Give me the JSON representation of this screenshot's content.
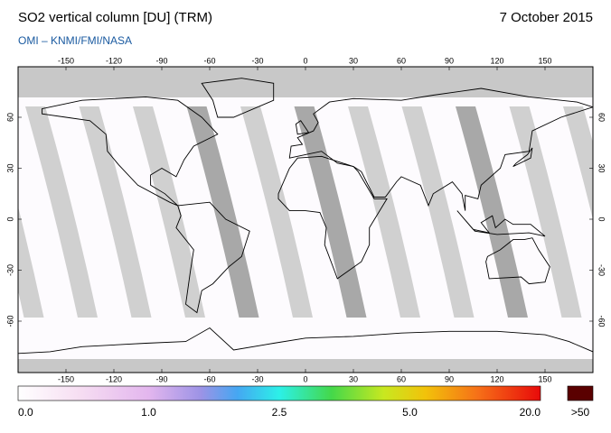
{
  "header": {
    "title": "SO2 vertical column [DU] (TRM)",
    "date": "7 October 2015",
    "subtitle": "OMI  –  KNMI/FMI/NASA"
  },
  "map": {
    "lon_ticks": [
      -150,
      -120,
      -90,
      -60,
      -30,
      0,
      30,
      60,
      90,
      120,
      150
    ],
    "lat_ticks": [
      60,
      30,
      0,
      -30,
      -60
    ]
  },
  "colorbar": {
    "labels": [
      "0.0",
      "1.0",
      "2.5",
      "5.0",
      "20.0"
    ],
    "overflow_label": ">50"
  }
}
